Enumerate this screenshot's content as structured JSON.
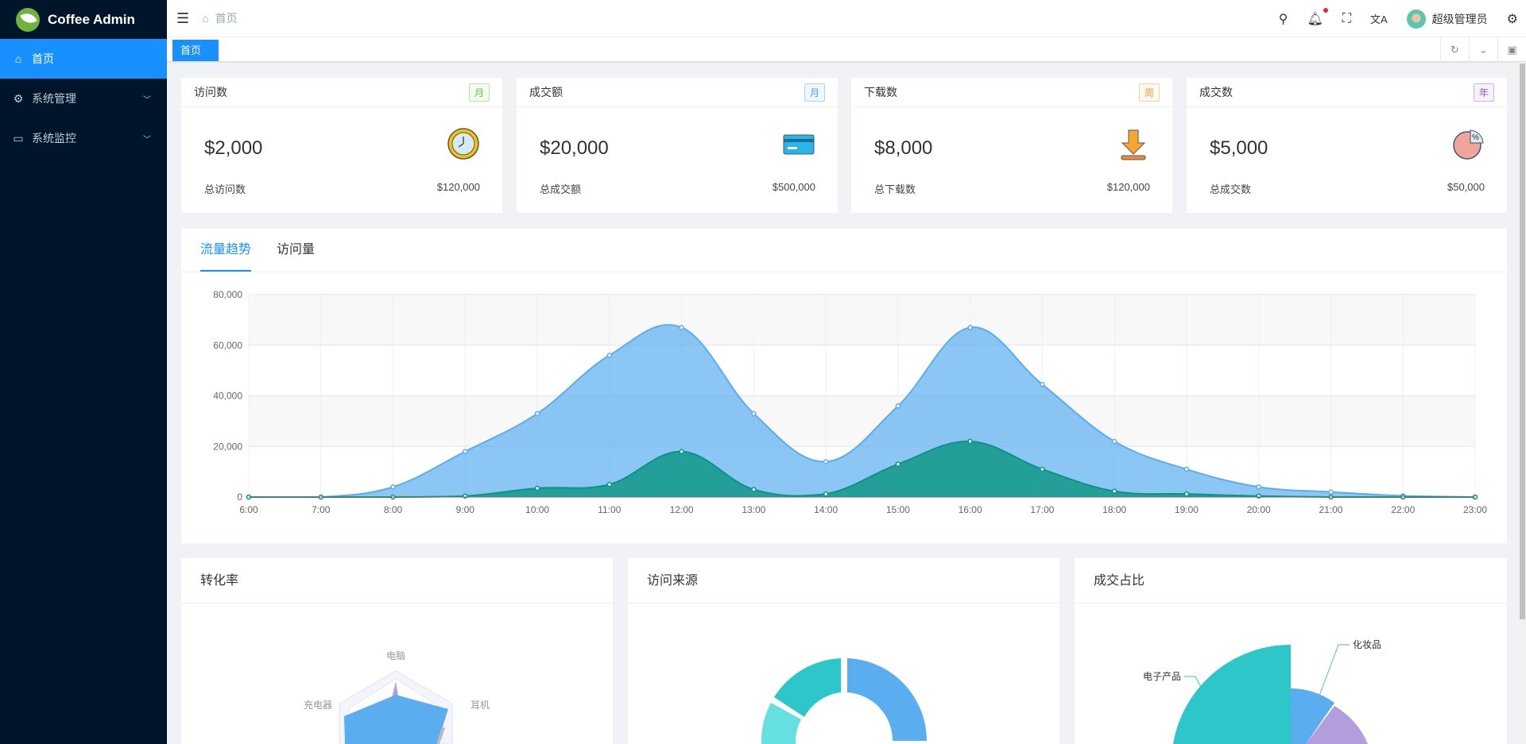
{
  "app": {
    "title": "Coffee Admin"
  },
  "sidebar": {
    "items": [
      {
        "label": "首页",
        "icon": "home-icon",
        "active": true
      },
      {
        "label": "系统管理",
        "icon": "gear-icon"
      },
      {
        "label": "系统监控",
        "icon": "monitor-icon"
      }
    ]
  },
  "header": {
    "breadcrumb": "首页",
    "user": "超级管理员",
    "notification_dot_color": "#f5222d"
  },
  "tabs": [
    {
      "label": "首页",
      "active": true
    }
  ],
  "stats": [
    {
      "title": "访问数",
      "tag": "月",
      "tag_color": "#67c23a",
      "value": "$2,000",
      "icon": "clock-icon",
      "footer_label": "总访问数",
      "footer_value": "$120,000"
    },
    {
      "title": "成交额",
      "tag": "月",
      "tag_color": "#409eff",
      "value": "$20,000",
      "icon": "credit-card-icon",
      "footer_label": "总成交额",
      "footer_value": "$500,000"
    },
    {
      "title": "下载数",
      "tag": "周",
      "tag_color": "#e6a23c",
      "value": "$8,000",
      "icon": "download-icon",
      "footer_label": "总下载数",
      "footer_value": "$120,000"
    },
    {
      "title": "成交数",
      "tag": "年",
      "tag_color": "#9254de",
      "value": "$5,000",
      "icon": "pie-percent-icon",
      "footer_label": "总成交数",
      "footer_value": "$50,000"
    }
  ],
  "trend": {
    "tabs": [
      "流量趋势",
      "访问量"
    ],
    "active_tab": 0
  },
  "chart_data": [
    {
      "type": "area",
      "x": [
        "6:00",
        "7:00",
        "8:00",
        "9:00",
        "10:00",
        "11:00",
        "12:00",
        "13:00",
        "14:00",
        "15:00",
        "16:00",
        "17:00",
        "18:00",
        "19:00",
        "20:00",
        "21:00",
        "22:00",
        "23:00"
      ],
      "yticks": [
        "0",
        "20,000",
        "40,000",
        "60,000",
        "80,000"
      ],
      "ylim": [
        0,
        80000
      ],
      "grid": true,
      "smooth": true,
      "series": [
        {
          "values": [
            0,
            0,
            4000,
            18000,
            33000,
            56000,
            67000,
            33000,
            14000,
            36000,
            67000,
            44500,
            22000,
            11000,
            4000,
            2000,
            500,
            0
          ],
          "color": "#5aaef0"
        },
        {
          "values": [
            0,
            0,
            0,
            400,
            3500,
            5000,
            18000,
            3000,
            1200,
            13000,
            22000,
            11000,
            2300,
            1200,
            400,
            0,
            0,
            0
          ],
          "color": "#0a9482"
        }
      ]
    }
  ],
  "bottom": {
    "conversion": {
      "title": "转化率",
      "labels": [
        "电脑",
        "耳机",
        "充电器"
      ]
    },
    "source": {
      "title": "访问来源"
    },
    "share": {
      "title": "成交占比",
      "labels": [
        "化妆品",
        "电子产品"
      ]
    }
  }
}
